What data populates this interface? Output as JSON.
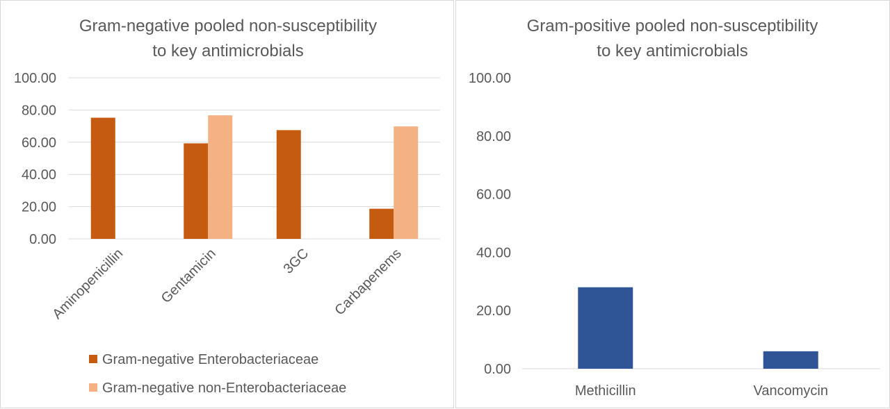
{
  "chart_data": [
    {
      "type": "bar",
      "title_lines": [
        "Gram-negative pooled non-susceptibility",
        "to key antimicrobials"
      ],
      "categories": [
        "Aminopenicillin",
        "Gentamicin",
        "3GC",
        "Carbapenems"
      ],
      "series": [
        {
          "name": "Gram-negative Enterobacteriaceae",
          "color": "#C55A11",
          "values": [
            75.2,
            59.3,
            67.5,
            18.7
          ]
        },
        {
          "name": "Gram-negative non-Enterobacteriaceae",
          "color": "#F4B183",
          "values": [
            null,
            76.7,
            null,
            69.8
          ]
        }
      ],
      "yticks": [
        "0.00",
        "20.00",
        "40.00",
        "60.00",
        "80.00",
        "100.00"
      ],
      "ylim": [
        0,
        100
      ],
      "grid": true,
      "legend": "bottom"
    },
    {
      "type": "bar",
      "title_lines": [
        "Gram-positive pooled non-susceptibility",
        "to key antimicrobials"
      ],
      "categories": [
        "Methicillin",
        "Vancomycin"
      ],
      "series": [
        {
          "color": "#2F5597",
          "values": [
            28.0,
            6.0
          ]
        }
      ],
      "yticks": [
        "0.00",
        "20.00",
        "40.00",
        "60.00",
        "80.00",
        "100.00"
      ],
      "ylim": [
        0,
        100
      ],
      "grid": false,
      "legend": "none"
    }
  ]
}
